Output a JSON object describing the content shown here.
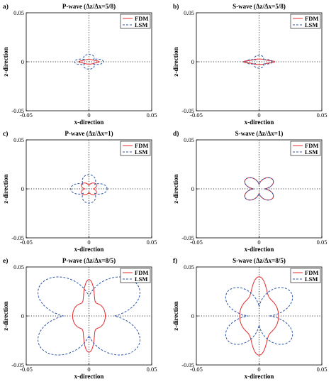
{
  "colors": {
    "fdm": "#e8282a",
    "lsm": "#2c54a8",
    "axes": "#000000"
  },
  "chart_data": [
    {
      "type": "line",
      "panel": "a)",
      "title": "P-wave (Δz/Δx=5/8)",
      "xlabel": "x-direction",
      "ylabel": "z-direction",
      "xlim": [
        -0.05,
        0.05
      ],
      "ylim": [
        -0.05,
        0.05
      ],
      "x_ticks": [
        "-0.05",
        "0",
        "0.05"
      ],
      "y_ticks": [
        "0.05",
        "0",
        "-0.05"
      ],
      "legend": [
        "FDM",
        "LSM"
      ],
      "legend_position": "top-right",
      "zero_lines": "dotted",
      "series": [
        {
          "name": "FDM",
          "style": "solid",
          "radius_x": 0.0082,
          "radius_z": 0.0024,
          "lobes": 0,
          "lobe_depth": 0,
          "squeeze": 0.2
        },
        {
          "name": "LSM",
          "style": "dashed",
          "radius_x": 0.0115,
          "radius_z": 0.0075,
          "lobes": 4,
          "lobe_depth": 0.55,
          "squeeze": 0
        }
      ]
    },
    {
      "type": "line",
      "panel": "b)",
      "title": "S-wave (Δz/Δx=5/8)",
      "xlabel": "x-direction",
      "ylabel": "z-direction",
      "xlim": [
        -0.05,
        0.05
      ],
      "ylim": [
        -0.05,
        0.05
      ],
      "x_ticks": [
        "-0.05",
        "0",
        "0.05"
      ],
      "y_ticks": [
        "0.05",
        "0",
        "-0.05"
      ],
      "legend": [
        "FDM",
        "LSM"
      ],
      "legend_position": "top-right",
      "zero_lines": "dotted",
      "series": [
        {
          "name": "FDM",
          "style": "solid",
          "radius_x": 0.0125,
          "radius_z": 0.0028,
          "lobes": 0,
          "lobe_depth": 0,
          "squeeze": 0.25
        },
        {
          "name": "LSM",
          "style": "dashed",
          "radius_x": 0.0105,
          "radius_z": 0.0065,
          "lobes": 4,
          "lobe_depth": 0.6,
          "squeeze": 0
        }
      ]
    },
    {
      "type": "line",
      "panel": "c)",
      "title": "P-wave (Δz/Δx=1)",
      "xlabel": "x-direction",
      "ylabel": "z-direction",
      "xlim": [
        -0.05,
        0.05
      ],
      "ylim": [
        -0.05,
        0.05
      ],
      "x_ticks": [
        "-0.05",
        "0",
        "0.05"
      ],
      "y_ticks": [
        "0.05",
        "0",
        "-0.05"
      ],
      "legend": [
        "FDM",
        "LSM"
      ],
      "legend_position": "top-right",
      "zero_lines": "dotted",
      "series": [
        {
          "name": "FDM",
          "style": "solid",
          "radius_x": 0.0075,
          "radius_z": 0.0075,
          "lobes": 4,
          "lobe_depth": 0.55,
          "squeeze": 0,
          "rotate": 0.785
        },
        {
          "name": "LSM",
          "style": "dashed",
          "radius_x": 0.0145,
          "radius_z": 0.0145,
          "lobes": 4,
          "lobe_depth": 0.55,
          "squeeze": 0
        }
      ]
    },
    {
      "type": "line",
      "panel": "d)",
      "title": "S-wave (Δz/Δx=1)",
      "xlabel": "x-direction",
      "ylabel": "z-direction",
      "xlim": [
        -0.05,
        0.05
      ],
      "ylim": [
        -0.05,
        0.05
      ],
      "x_ticks": [
        "-0.05",
        "0",
        "0.05"
      ],
      "y_ticks": [
        "0.05",
        "0",
        "-0.05"
      ],
      "legend": [
        "FDM",
        "LSM"
      ],
      "legend_position": "top-right",
      "zero_lines": "dotted",
      "series": [
        {
          "name": "FDM",
          "style": "solid",
          "radius_x": 0.0145,
          "radius_z": 0.0145,
          "lobes": 4,
          "lobe_depth": 0.7,
          "squeeze": 0,
          "rotate": 0.785
        },
        {
          "name": "LSM",
          "style": "dashed",
          "radius_x": 0.0145,
          "radius_z": 0.0145,
          "lobes": 4,
          "lobe_depth": 0.7,
          "squeeze": 0,
          "rotate": 0.785
        }
      ]
    },
    {
      "type": "line",
      "panel": "e)",
      "title": "P-wave (Δz/Δx=8/5)",
      "xlabel": "x-direction",
      "ylabel": "z-direction",
      "xlim": [
        -0.05,
        0.05
      ],
      "ylim": [
        -0.05,
        0.05
      ],
      "x_ticks": [
        "-0.05",
        "0",
        "0.05"
      ],
      "y_ticks": [
        "0.05",
        "0",
        "-0.05"
      ],
      "legend": [
        "FDM",
        "LSM"
      ],
      "legend_position": "top-right",
      "zero_lines": "dotted",
      "series": [
        {
          "name": "FDM",
          "style": "solid",
          "radius_x": 0.013,
          "radius_z": 0.037,
          "lobes": 0,
          "lobe_depth": 0,
          "squeeze": 0.45
        },
        {
          "name": "LSM",
          "style": "dashed",
          "radius_x": 0.051,
          "radius_z": 0.05,
          "lobes": 4,
          "lobe_depth": 0.6,
          "squeeze": 0,
          "rotate": 0.785
        }
      ]
    },
    {
      "type": "line",
      "panel": "f)",
      "title": "S-wave (Δz/Δx=8/5)",
      "xlabel": "x-direction",
      "ylabel": "z-direction",
      "xlim": [
        -0.05,
        0.05
      ],
      "ylim": [
        -0.05,
        0.05
      ],
      "x_ticks": [
        "-0.05",
        "0",
        "0.05"
      ],
      "y_ticks": [
        "0.05",
        "0",
        "-0.05"
      ],
      "legend": [
        "FDM",
        "LSM"
      ],
      "legend_position": "top-right",
      "zero_lines": "dotted",
      "series": [
        {
          "name": "FDM",
          "style": "solid",
          "radius_x": 0.0155,
          "radius_z": 0.04,
          "lobes": 0,
          "lobe_depth": 0,
          "squeeze": 0.3
        },
        {
          "name": "LSM",
          "style": "dashed",
          "radius_x": 0.034,
          "radius_z": 0.037,
          "lobes": 4,
          "lobe_depth": 0.75,
          "squeeze": 0,
          "rotate": 0.785
        }
      ]
    }
  ]
}
